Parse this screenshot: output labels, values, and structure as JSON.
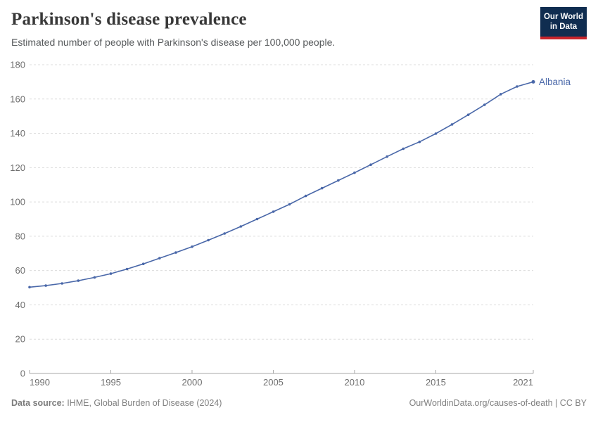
{
  "header": {
    "title": "Parkinson's disease prevalence",
    "subtitle": "Estimated number of people with Parkinson's disease per 100,000 people.",
    "logo": {
      "line1": "Our World",
      "line2": "in Data",
      "bg_color": "#102D50",
      "stripe_color": "#C7252C"
    }
  },
  "chart_data": {
    "type": "line",
    "title": "Parkinson's disease prevalence",
    "subtitle": "Estimated number of people with Parkinson's disease per 100,000 people.",
    "xlabel": "",
    "ylabel": "",
    "x": [
      1990,
      1991,
      1992,
      1993,
      1994,
      1995,
      1996,
      1997,
      1998,
      1999,
      2000,
      2001,
      2002,
      2003,
      2004,
      2005,
      2006,
      2007,
      2008,
      2009,
      2010,
      2011,
      2012,
      2013,
      2014,
      2015,
      2016,
      2017,
      2018,
      2019,
      2020,
      2021
    ],
    "series": [
      {
        "name": "Albania",
        "color": "#4A68A9",
        "values": [
          50.3,
          51.2,
          52.5,
          54.1,
          56.0,
          58.2,
          60.9,
          63.9,
          67.2,
          70.5,
          73.9,
          77.7,
          81.6,
          85.7,
          90.0,
          94.3,
          98.6,
          103.5,
          108.0,
          112.5,
          117.0,
          121.7,
          126.4,
          131.0,
          135.0,
          139.8,
          145.2,
          150.8,
          156.6,
          162.8,
          167.3,
          170.0
        ]
      }
    ],
    "ylim": [
      0,
      180
    ],
    "yticks": [
      0,
      20,
      40,
      60,
      80,
      100,
      120,
      140,
      160,
      180
    ],
    "xticks": [
      1990,
      1995,
      2000,
      2005,
      2010,
      2015,
      2021
    ],
    "grid": "horizontal-dashed",
    "legend_position": "end-of-line",
    "grid_color": "#dcdcdc",
    "axis_color": "#a7a7a7",
    "tick_label_color": "#6e6e6e"
  },
  "footer": {
    "source_label": "Data source:",
    "source_text": " IHME, Global Burden of Disease (2024)",
    "credit": "OurWorldinData.org/causes-of-death | CC BY"
  }
}
